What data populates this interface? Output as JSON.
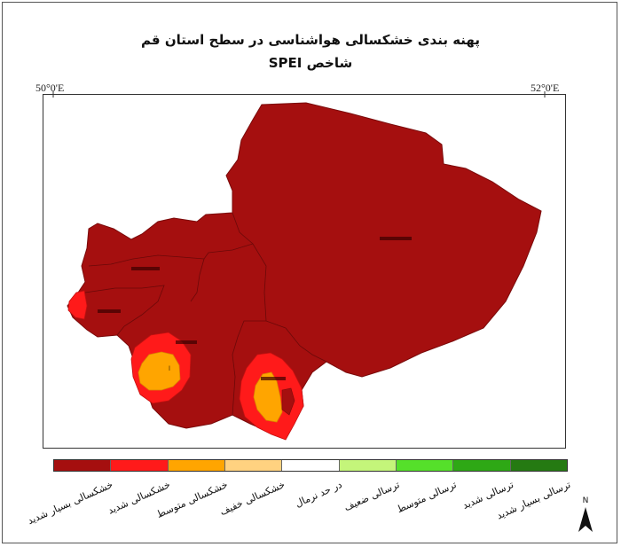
{
  "title": {
    "line1": "پهنه بندی خشکسالی هواشناسی در سطح استان قم",
    "line2": "شاخص SPEI"
  },
  "coordinates": {
    "left_longitude": "50°0'E",
    "right_longitude": "52°0'E"
  },
  "map": {
    "regions": [
      {
        "name": "district-northwest",
        "label": "",
        "class": "خشکسالی بسیار شدید"
      },
      {
        "name": "district-west",
        "label": "",
        "class": "خشکسالی بسیار شدید"
      },
      {
        "name": "district-central",
        "label": "",
        "class": "خشکسالی بسیار شدید"
      },
      {
        "name": "district-southwest",
        "label": "",
        "class": "خشکسالی بسیار شدید"
      },
      {
        "name": "district-south",
        "label": "",
        "class": "خشکسالی بسیار شدید"
      },
      {
        "name": "district-east",
        "label": "",
        "class": "خشکسالی بسیار شدید"
      }
    ],
    "small_marker": "l"
  },
  "legend": {
    "items": [
      {
        "label": "خشکسالی بسیار شدید",
        "color": "#a50f0f"
      },
      {
        "label": "خشکسالی شدید",
        "color": "#ff1a1a"
      },
      {
        "label": "خشکسالی متوسط",
        "color": "#ffa500"
      },
      {
        "label": "خشکسالی خفیف",
        "color": "#ffd280"
      },
      {
        "label": "در حد نرمال",
        "color": "#ffffff"
      },
      {
        "label": "ترسالی ضعیف",
        "color": "#c4f57a"
      },
      {
        "label": "ترسالی متوسط",
        "color": "#55e02a"
      },
      {
        "label": "ترسالی شدید",
        "color": "#2ea815"
      },
      {
        "label": "ترسالی بسیار شدید",
        "color": "#257a12"
      }
    ]
  },
  "north_arrow": {
    "letter": "N"
  }
}
